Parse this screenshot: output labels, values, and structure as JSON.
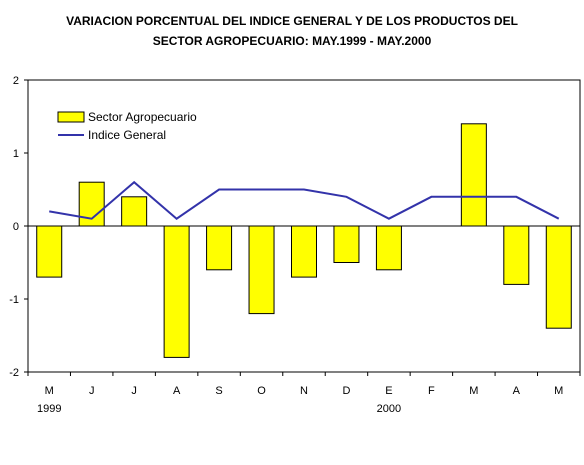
{
  "chart_data": {
    "type": "bar+line",
    "title_lines": [
      "VARIACION PORCENTUAL DEL INDICE GENERAL Y DE LOS PRODUCTOS DEL",
      "SECTOR AGROPECUARIO: MAY.1999 - MAY.2000"
    ],
    "categories": [
      "M",
      "J",
      "J",
      "A",
      "S",
      "O",
      "N",
      "D",
      "E",
      "F",
      "M",
      "A",
      "M"
    ],
    "year_labels": [
      {
        "index": 0,
        "label": "1999"
      },
      {
        "index": 8,
        "label": "2000"
      }
    ],
    "yticks": [
      -2,
      -1,
      0,
      1,
      2
    ],
    "ylim": [
      -2,
      2
    ],
    "grid": false,
    "legend_position": "top-left",
    "series": [
      {
        "name": "Sector Agropecuario",
        "kind": "bar",
        "color": "#FFFF00",
        "values": [
          -0.7,
          0.6,
          0.4,
          -1.8,
          -0.6,
          -1.2,
          -0.7,
          -0.5,
          -0.6,
          0.0,
          1.4,
          -0.8,
          -1.4
        ]
      },
      {
        "name": "Indice General",
        "kind": "line",
        "color": "#3333AA",
        "values": [
          0.2,
          0.1,
          0.6,
          0.1,
          0.5,
          0.5,
          0.5,
          0.4,
          0.1,
          0.4,
          0.4,
          0.4,
          0.1
        ]
      }
    ]
  }
}
